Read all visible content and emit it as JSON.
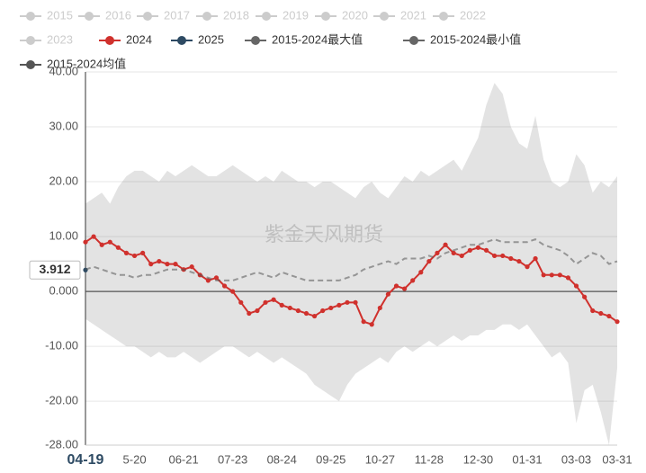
{
  "chart_data": {
    "type": "line",
    "watermark": "紫金天风期货",
    "categories": [
      "04-19",
      null,
      null,
      null,
      null,
      null,
      "5-20",
      null,
      null,
      null,
      null,
      null,
      "06-21",
      null,
      null,
      null,
      null,
      null,
      "07-23",
      null,
      null,
      null,
      null,
      null,
      "08-24",
      null,
      null,
      null,
      null,
      null,
      "09-25",
      null,
      null,
      null,
      null,
      null,
      "10-27",
      null,
      null,
      null,
      null,
      null,
      "11-28",
      null,
      null,
      null,
      null,
      null,
      "12-30",
      null,
      null,
      null,
      null,
      null,
      "01-31",
      null,
      null,
      null,
      null,
      null,
      "03-03",
      null,
      null,
      null,
      null,
      "03-31"
    ],
    "ylim": [
      -28,
      40
    ],
    "yticks": [
      {
        "value": -28,
        "label": "-28.00"
      },
      {
        "value": -20,
        "label": "-20.00"
      },
      {
        "value": -10,
        "label": "-10.00"
      },
      {
        "value": 0,
        "label": "0.000"
      },
      {
        "value": 10,
        "label": "10.00"
      },
      {
        "value": 20,
        "label": "20.00"
      },
      {
        "value": 30,
        "label": "30.00"
      },
      {
        "value": 40,
        "label": "40.00"
      }
    ],
    "grid": true,
    "legend": "top-left",
    "series": [
      {
        "name": "2015",
        "color": "#cccccc"
      },
      {
        "name": "2016",
        "color": "#cccccc"
      },
      {
        "name": "2017",
        "color": "#cccccc"
      },
      {
        "name": "2018",
        "color": "#cccccc"
      },
      {
        "name": "2019",
        "color": "#cccccc"
      },
      {
        "name": "2020",
        "color": "#cccccc"
      },
      {
        "name": "2021",
        "color": "#cccccc"
      },
      {
        "name": "2022",
        "color": "#cccccc"
      },
      {
        "name": "2023",
        "color": "#cccccc"
      },
      {
        "name": "2024",
        "color": "#d0312d",
        "markers": true,
        "values": [
          9,
          10,
          8.5,
          9,
          8,
          7,
          6.5,
          7,
          5,
          5.5,
          5,
          5,
          4,
          4.5,
          3,
          2,
          2.5,
          1,
          0,
          -2,
          -4,
          -3.5,
          -2,
          -1.5,
          -2.5,
          -3,
          -3.5,
          -4,
          -4.5,
          -3.5,
          -3,
          -2.5,
          -2,
          -2,
          -5.5,
          -6,
          -3,
          -0.5,
          1,
          0.5,
          2,
          3.5,
          5.5,
          7,
          8.5,
          7,
          6.5,
          7.5,
          8,
          7.5,
          6.5,
          6.5,
          6,
          5.5,
          4.5,
          6,
          3,
          3,
          3,
          2.5,
          1,
          -1,
          -3.5,
          -4,
          -4.5,
          -5.5
        ]
      },
      {
        "name": "2025",
        "color": "#2d4a63",
        "markers": true,
        "values": [
          3.912,
          null,
          null,
          null,
          null,
          null,
          null,
          null,
          null,
          null,
          null,
          null,
          null,
          null,
          null,
          null,
          null,
          null,
          null,
          null,
          null,
          null,
          null,
          null,
          null,
          null,
          null,
          null,
          null,
          null,
          null,
          null,
          null,
          null,
          null,
          null,
          null,
          null,
          null,
          null,
          null,
          null,
          null,
          null,
          null,
          null,
          null,
          null,
          null,
          null,
          null,
          null,
          null,
          null,
          null,
          null,
          null,
          null,
          null,
          null,
          null,
          null,
          null,
          null,
          null,
          null
        ]
      },
      {
        "name": "2015-2024最大值",
        "color": "#666666",
        "area": true,
        "values": [
          16,
          17,
          18,
          16,
          19,
          21,
          22,
          22,
          21,
          20,
          22,
          21,
          22,
          23,
          22,
          21,
          21,
          22,
          23,
          22,
          21,
          20,
          21,
          20,
          22,
          21,
          20,
          20,
          19,
          20,
          20,
          19,
          18,
          17,
          19,
          20,
          18,
          17,
          19,
          21,
          20,
          22,
          21,
          22,
          23,
          24,
          22,
          25,
          28,
          34,
          38,
          36,
          30,
          27,
          26,
          32,
          24,
          20,
          19,
          20,
          25,
          23,
          18,
          20,
          19,
          21
        ]
      },
      {
        "name": "2015-2024最小值",
        "color": "#666666",
        "area": true,
        "values": [
          -5,
          -6,
          -7,
          -8,
          -9,
          -10,
          -10,
          -11,
          -12,
          -11,
          -12,
          -12,
          -11,
          -12,
          -13,
          -12,
          -11,
          -10,
          -10,
          -11,
          -12,
          -11,
          -12,
          -13,
          -12,
          -13,
          -14,
          -15,
          -17,
          -18,
          -19,
          -20,
          -17,
          -15,
          -14,
          -13,
          -12,
          -13,
          -11,
          -10,
          -11,
          -10,
          -9,
          -10,
          -9,
          -8,
          -9,
          -8,
          -8,
          -7,
          -7,
          -6,
          -6,
          -7,
          -6,
          -8,
          -10,
          -12,
          -11,
          -13,
          -24,
          -18,
          -17,
          -22,
          -28,
          -14
        ]
      },
      {
        "name": "2015-2024均值",
        "color": "#555555",
        "dash": true,
        "values": [
          4,
          4.5,
          4,
          3.5,
          3,
          3,
          2.5,
          3,
          3,
          3.5,
          4,
          4,
          4,
          3.5,
          3,
          2.5,
          2,
          2,
          2,
          2.5,
          3,
          3.5,
          3,
          2.5,
          3.5,
          3,
          2.5,
          2,
          2,
          2,
          2,
          2,
          2.5,
          3,
          4,
          4.5,
          5,
          5.5,
          5,
          6,
          6,
          6,
          6.5,
          6,
          7,
          7.5,
          8,
          8.5,
          8.5,
          9,
          9.5,
          9,
          9,
          9,
          9,
          9.5,
          8.5,
          8,
          7.5,
          6.5,
          5,
          6,
          7,
          6.5,
          5,
          5.5
        ]
      }
    ]
  }
}
